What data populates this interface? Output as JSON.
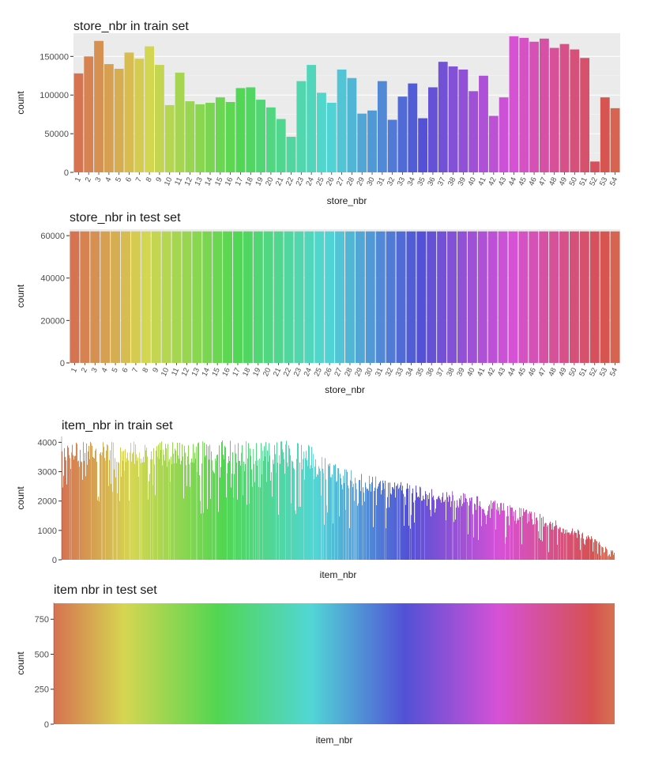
{
  "chart_data": [
    {
      "type": "bar",
      "title": "store_nbr in train set",
      "xlabel": "store_nbr",
      "ylabel": "count",
      "ylim": [
        0,
        180000
      ],
      "yticks": [
        0,
        50000,
        100000,
        150000
      ],
      "grid": true,
      "categories": [
        "1",
        "2",
        "3",
        "4",
        "5",
        "6",
        "7",
        "8",
        "9",
        "10",
        "11",
        "12",
        "13",
        "14",
        "15",
        "16",
        "17",
        "18",
        "19",
        "20",
        "21",
        "22",
        "23",
        "24",
        "25",
        "26",
        "27",
        "28",
        "29",
        "30",
        "31",
        "32",
        "33",
        "34",
        "35",
        "36",
        "37",
        "38",
        "39",
        "40",
        "41",
        "42",
        "43",
        "44",
        "45",
        "46",
        "47",
        "48",
        "49",
        "50",
        "51",
        "52",
        "53",
        "54"
      ],
      "values": [
        128000,
        150000,
        170000,
        140000,
        134000,
        155000,
        147000,
        163000,
        139000,
        87000,
        129000,
        92000,
        88000,
        90000,
        97000,
        91000,
        109000,
        110000,
        94000,
        84000,
        69000,
        46000,
        118000,
        139000,
        103000,
        90000,
        133000,
        122000,
        76000,
        80000,
        118000,
        68000,
        98000,
        115000,
        70000,
        110000,
        143000,
        137000,
        133000,
        105000,
        125000,
        73000,
        97000,
        176000,
        174000,
        169000,
        173000,
        161000,
        166000,
        159000,
        148000,
        14000,
        97000,
        83000
      ]
    },
    {
      "type": "bar",
      "title": "store_nbr in test set",
      "xlabel": "store_nbr",
      "ylabel": "count",
      "ylim": [
        0,
        63000
      ],
      "yticks": [
        0,
        20000,
        40000,
        60000
      ],
      "grid": true,
      "categories": [
        "1",
        "2",
        "3",
        "4",
        "5",
        "6",
        "7",
        "8",
        "9",
        "10",
        "11",
        "12",
        "13",
        "14",
        "15",
        "16",
        "17",
        "18",
        "19",
        "20",
        "21",
        "22",
        "23",
        "24",
        "25",
        "26",
        "27",
        "28",
        "29",
        "30",
        "31",
        "32",
        "33",
        "34",
        "35",
        "36",
        "37",
        "38",
        "39",
        "40",
        "41",
        "42",
        "43",
        "44",
        "45",
        "46",
        "47",
        "48",
        "49",
        "50",
        "51",
        "52",
        "53",
        "54"
      ],
      "value": 62000
    },
    {
      "type": "bar",
      "title": "item_nbr in train set",
      "xlabel": "item_nbr",
      "ylabel": "count",
      "ylim": [
        0,
        4200
      ],
      "yticks": [
        0,
        1000,
        2000,
        3000,
        4000
      ],
      "grid": false,
      "n_items": 4100,
      "profile": [
        {
          "position": 0.0,
          "max": 4000,
          "min": 2000
        },
        {
          "position": 0.45,
          "max": 4100,
          "min": 1200
        },
        {
          "position": 0.5,
          "max": 3200,
          "min": 800
        },
        {
          "position": 0.65,
          "max": 2500,
          "min": 1000
        },
        {
          "position": 0.75,
          "max": 2200,
          "min": 600
        },
        {
          "position": 0.85,
          "max": 1700,
          "min": 300
        },
        {
          "position": 0.95,
          "max": 900,
          "min": 150
        },
        {
          "position": 1.0,
          "max": 300,
          "min": 50
        }
      ]
    },
    {
      "type": "bar",
      "title": "item  nbr in test set",
      "xlabel": "item_nbr",
      "ylabel": "count",
      "ylim": [
        0,
        870
      ],
      "yticks": [
        0,
        250,
        500,
        750
      ],
      "grid": false,
      "n_items": 3900,
      "value": 864
    }
  ]
}
